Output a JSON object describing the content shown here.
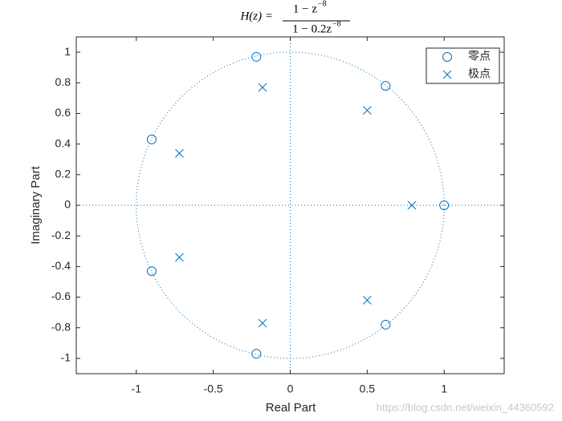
{
  "chart_data": {
    "type": "scatter",
    "title": {
      "lhs": "H(z) =",
      "numerator": "1 − z",
      "numerator_exp": "−8",
      "denominator": "1 − 0.2z",
      "denominator_exp": "−8"
    },
    "x_label": "Real Part",
    "y_label": "Imaginary Part",
    "xlim": [
      -1.39,
      1.39
    ],
    "ylim": [
      -1.1,
      1.1
    ],
    "xticks": [
      -1,
      -0.5,
      0,
      0.5,
      1
    ],
    "yticks": [
      -1,
      -0.8,
      -0.6,
      -0.4,
      -0.2,
      0,
      0.2,
      0.4,
      0.6,
      0.8,
      1
    ],
    "legend": "northeast",
    "series": [
      {
        "name": "零点",
        "marker": "o",
        "color": "#0072bd",
        "x": [
          1,
          0.62,
          -0.22,
          -0.9,
          -0.9,
          -0.22,
          0.62
        ],
        "y": [
          0,
          0.78,
          0.97,
          0.43,
          -0.43,
          -0.97,
          -0.78
        ]
      },
      {
        "name": "极点",
        "marker": "x",
        "color": "#0072bd",
        "x": [
          0.79,
          0.5,
          -0.18,
          -0.72,
          -0.72,
          -0.18,
          0.5
        ],
        "y": [
          0,
          0.62,
          0.77,
          0.34,
          -0.34,
          -0.77,
          -0.62
        ]
      }
    ]
  },
  "watermark": "https://blog.csdn.net/weixin_44360592"
}
